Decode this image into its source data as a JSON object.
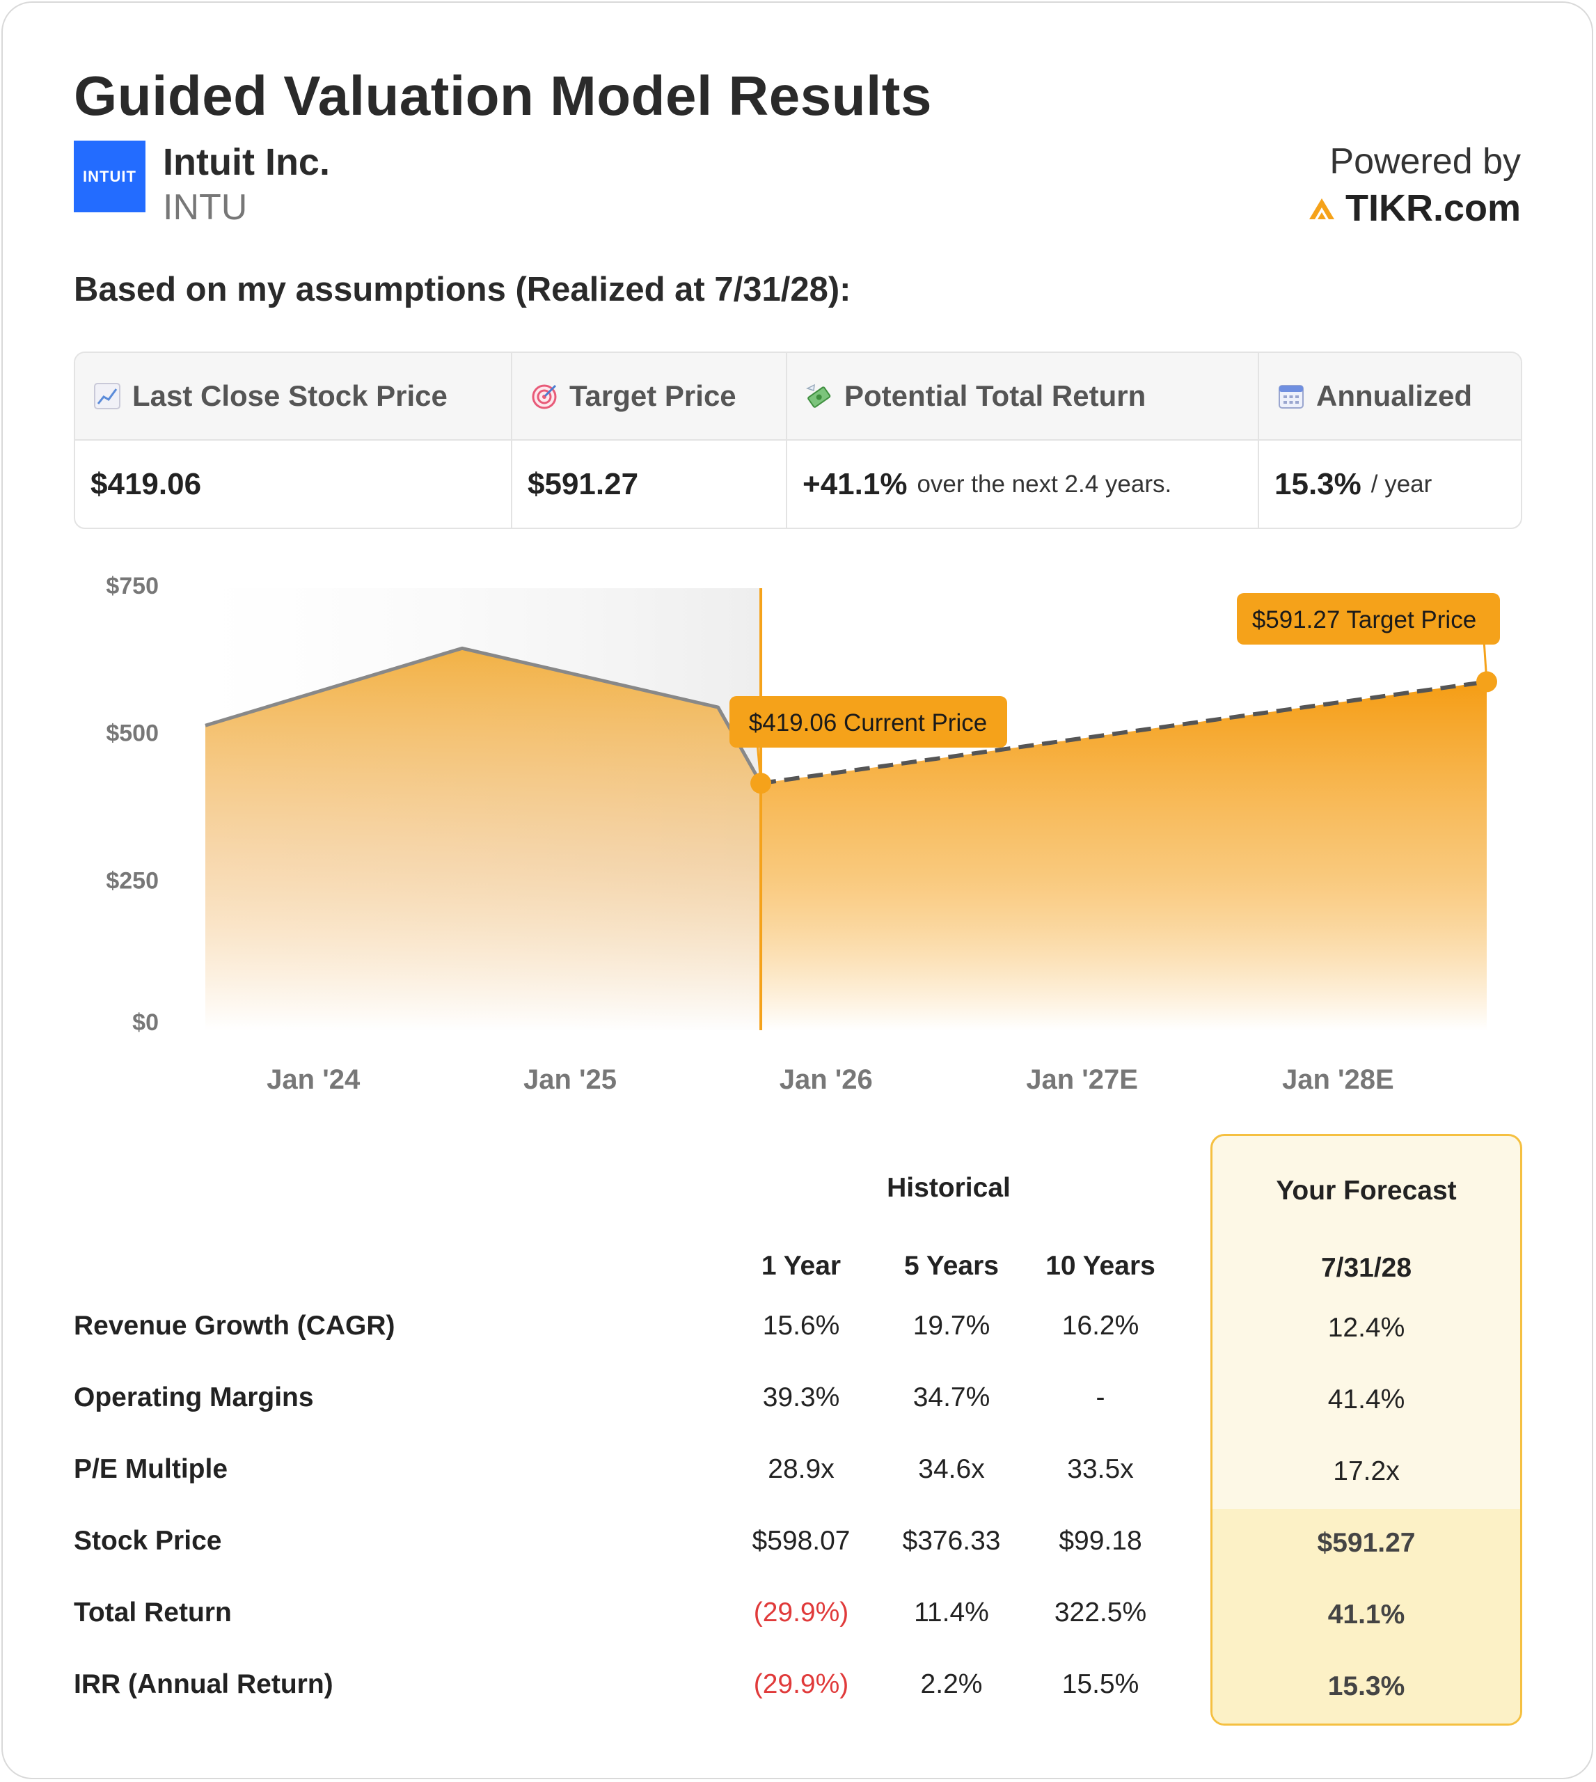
{
  "header": {
    "title": "Guided Valuation Model Results",
    "company": "Intuit Inc.",
    "ticker": "INTU",
    "logo_text": "INTUIT",
    "powered_by": "Powered by",
    "brand": "TIKR.com"
  },
  "subtitle": "Based on my assumptions (Realized at 7/31/28):",
  "summary": {
    "headers": [
      "Last Close Stock Price",
      "Target Price",
      "Potential Total Return",
      "Annualized"
    ],
    "icons": [
      "chart-increasing-icon",
      "target-icon",
      "money-with-wings-icon",
      "calendar-icon"
    ],
    "last_close": "$419.06",
    "target": "$591.27",
    "total_return": "+41.1%",
    "total_return_note": "over the next 2.4 years.",
    "annualized": "15.3%",
    "annualized_note": "/ year"
  },
  "chart_data": {
    "type": "area",
    "y_ticks": [
      "$750",
      "$500",
      "$250",
      "$0"
    ],
    "x_ticks": [
      "Jan '24",
      "Jan '25",
      "Jan '26",
      "Jan '27E",
      "Jan '28E"
    ],
    "ylim": [
      0,
      750
    ],
    "historical": {
      "x": [
        "2023-07-31",
        "2024-07-31",
        "2025-07-31",
        "2025-09-30"
      ],
      "y": [
        517,
        648,
        548,
        419.06
      ]
    },
    "forecast": {
      "x": [
        "2025-09-30",
        "2028-07-31"
      ],
      "y": [
        419.06,
        591.27
      ]
    },
    "annotations": {
      "current": "$419.06 Current Price",
      "target": "$591.27 Target Price"
    },
    "colors": {
      "area": "#f5a623",
      "line": "#888888",
      "accent": "#f5a21a"
    }
  },
  "table": {
    "group_historical": "Historical",
    "group_forecast": "Your Forecast",
    "columns": [
      "1 Year",
      "5 Years",
      "10 Years"
    ],
    "forecast_date": "7/31/28",
    "rows": [
      {
        "label": "Revenue Growth (CAGR)",
        "values": [
          "15.6%",
          "19.7%",
          "16.2%"
        ],
        "forecast": "12.4%"
      },
      {
        "label": "Operating Margins",
        "values": [
          "39.3%",
          "34.7%",
          "-"
        ],
        "forecast": "41.4%"
      },
      {
        "label": "P/E Multiple",
        "values": [
          "28.9x",
          "34.6x",
          "33.5x"
        ],
        "forecast": "17.2x"
      },
      {
        "label": "Stock Price",
        "values": [
          "$598.07",
          "$376.33",
          "$99.18"
        ],
        "forecast": "$591.27"
      },
      {
        "label": "Total Return",
        "values": [
          "(29.9%)",
          "11.4%",
          "322.5%"
        ],
        "forecast": "41.1%"
      },
      {
        "label": "IRR (Annual Return)",
        "values": [
          "(29.9%)",
          "2.2%",
          "15.5%"
        ],
        "forecast": "15.3%"
      }
    ]
  }
}
